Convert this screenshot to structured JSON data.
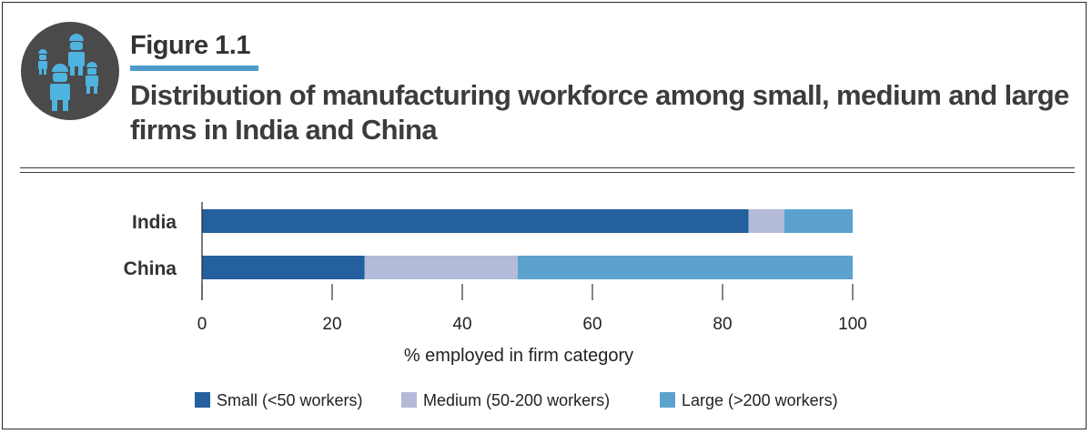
{
  "figure_label": "Figure 1.1",
  "title": "Distribution of manufacturing workforce among small, medium and large firms in India and China",
  "icon": "workers-group-icon",
  "colors": {
    "small": "#245f9e",
    "medium": "#b3bbd8",
    "large": "#5ca2cf",
    "text": "#333333",
    "accent": "#4e9bc9"
  },
  "chart_data": {
    "type": "bar",
    "orientation": "horizontal",
    "stacked": true,
    "categories": [
      "India",
      "China"
    ],
    "series": [
      {
        "name": "Small (<50 workers)",
        "values": [
          84,
          25
        ]
      },
      {
        "name": "Medium (50-200 workers)",
        "values": [
          5.5,
          23.5
        ]
      },
      {
        "name": "Large (>200 workers)",
        "values": [
          10.5,
          51.5
        ]
      }
    ],
    "xlabel": "% employed in firm category",
    "ylabel": "",
    "xlim": [
      0,
      100
    ],
    "xticks": [
      "0",
      "20",
      "40",
      "60",
      "80",
      "100"
    ],
    "grid": false,
    "legend_position": "bottom"
  }
}
